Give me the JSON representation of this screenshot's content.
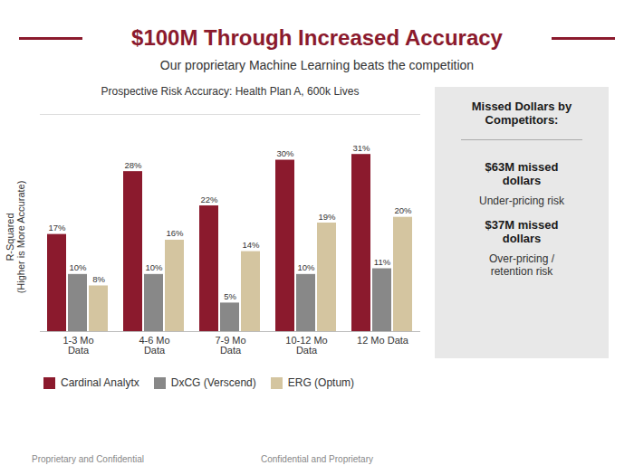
{
  "chart_data": {
    "type": "bar",
    "title": "$100M Through Increased Accuracy",
    "subtitle": "Our proprietary Machine Learning beats the competition",
    "chart_title": "Prospective Risk Accuracy: Health Plan A, 600k Lives",
    "ylabel": "R-Squared\n(Higher is More Accurate)",
    "categories": [
      "1-3 Mo\nData",
      "4-6 Mo\nData",
      "7-9 Mo\nData",
      "10-12 Mo\nData",
      "12 Mo Data"
    ],
    "series": [
      {
        "name": "Cardinal Analytx",
        "color": "#8B1A2D",
        "values": [
          17,
          28,
          22,
          30,
          31
        ],
        "value_labels": [
          "17%",
          "28%",
          "22%",
          "30%",
          "31%"
        ]
      },
      {
        "name": "DxCG (Verscend)",
        "color": "#888888",
        "values": [
          10,
          10,
          5,
          10,
          11
        ],
        "value_labels": [
          "10%",
          "10%",
          "5%",
          "10%",
          "11%"
        ]
      },
      {
        "name": "ERG (Optum)",
        "color": "#D4C5A0",
        "values": [
          8,
          16,
          14,
          19,
          20
        ],
        "value_labels": [
          "8%",
          "16%",
          "14%",
          "19%",
          "20%"
        ]
      }
    ],
    "ylim": [
      0,
      38
    ],
    "data_labels": true,
    "tick_labels": "x",
    "grid": false,
    "legend": "bottom",
    "sidebar_title": "Missed Dollars by\nCompetitors:",
    "sidebar_items": [
      {
        "title": "$63M missed\ndollars",
        "text": "Under-pricing risk"
      },
      {
        "title": "$37M missed\ndollars",
        "text": "Over-pricing /\nretention risk"
      }
    ],
    "footer": [
      "Proprietary and Confidential",
      "Confidential and Proprietary"
    ]
  }
}
